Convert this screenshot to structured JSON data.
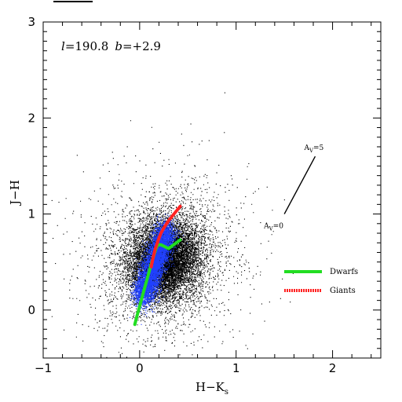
{
  "chart_data": {
    "type": "scatter",
    "xlabel": "H−K",
    "xlabel_sub": "s",
    "ylabel": "J−H",
    "xlim": [
      -1,
      2.5
    ],
    "ylim": [
      -0.5,
      3
    ],
    "x_ticks": [
      -1,
      0,
      1,
      2
    ],
    "x_tick_labels": [
      "−1",
      "0",
      "1",
      "2"
    ],
    "y_ticks": [
      0,
      1,
      2,
      3
    ],
    "y_tick_labels": [
      "0",
      "1",
      "2",
      "3"
    ],
    "field_annotation": {
      "l_symbol": "l",
      "l_value": "=190.8",
      "b_symbol": "b",
      "b_value": "=+2.9"
    },
    "point_cloud": {
      "description": "dense black scatter of stars centred near H-Ks 0.25, J-H 0.5 with blue high-density core",
      "center": [
        0.25,
        0.52
      ],
      "colors": {
        "points": "#000000",
        "core": "#2040ff"
      }
    },
    "series": [
      {
        "name": "Dwarfs",
        "color": "#22dd22",
        "x": [
          -0.05,
          -0.03,
          0.0,
          0.03,
          0.06,
          0.09,
          0.12,
          0.15,
          0.17,
          0.19,
          0.22,
          0.26,
          0.3,
          0.34,
          0.38,
          0.42
        ],
        "y": [
          -0.15,
          -0.07,
          0.04,
          0.15,
          0.26,
          0.37,
          0.48,
          0.58,
          0.64,
          0.68,
          0.68,
          0.66,
          0.64,
          0.67,
          0.7,
          0.73
        ]
      },
      {
        "name": "Giants",
        "color": "#ff2222",
        "x": [
          0.12,
          0.14,
          0.16,
          0.19,
          0.22,
          0.26,
          0.3,
          0.34,
          0.38,
          0.42
        ],
        "y": [
          0.45,
          0.55,
          0.63,
          0.72,
          0.8,
          0.87,
          0.93,
          0.98,
          1.03,
          1.08
        ]
      }
    ],
    "reddening_vector": {
      "start": [
        1.5,
        1.0
      ],
      "end": [
        1.82,
        1.6
      ],
      "label_start": "A",
      "label_start_sub": "V",
      "label_start_value": "=0",
      "label_end": "A",
      "label_end_sub": "V",
      "label_end_value": "=5"
    },
    "legend": {
      "position": "lower-right",
      "entries": [
        {
          "label": "Dwarfs",
          "color": "#22dd22",
          "style": "solid"
        },
        {
          "label": "Giants",
          "color": "#ff2222",
          "style": "dotted"
        }
      ]
    }
  }
}
